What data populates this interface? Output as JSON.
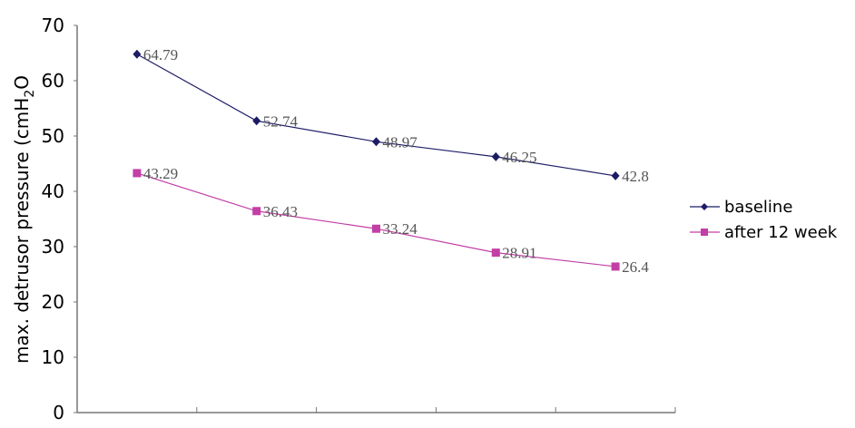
{
  "chart_data": {
    "type": "line",
    "title": "",
    "xlabel": "",
    "ylabel": "max. detrusor pressure (cmH",
    "ylabel_subscript": "2",
    "ylabel_suffix": "O",
    "ylim": [
      0,
      70
    ],
    "yticks": [
      0,
      10,
      20,
      30,
      40,
      50,
      60,
      70
    ],
    "categories": [
      "",
      "",
      "",
      "",
      ""
    ],
    "grid": false,
    "legend": "right",
    "series": [
      {
        "name": "baseline",
        "color": "#1c1c66",
        "marker": "diamond",
        "values": [
          64.79,
          52.74,
          48.97,
          46.25,
          42.8
        ],
        "labels": [
          "64.79",
          "52.74",
          "48.97",
          "46.25",
          "42.8"
        ]
      },
      {
        "name": "after 12 week",
        "color": "#c23fa6",
        "marker": "square",
        "values": [
          43.29,
          36.43,
          33.24,
          28.91,
          26.4
        ],
        "labels": [
          "43.29",
          "36.43",
          "33.24",
          "28.91",
          "26.4"
        ]
      }
    ]
  }
}
